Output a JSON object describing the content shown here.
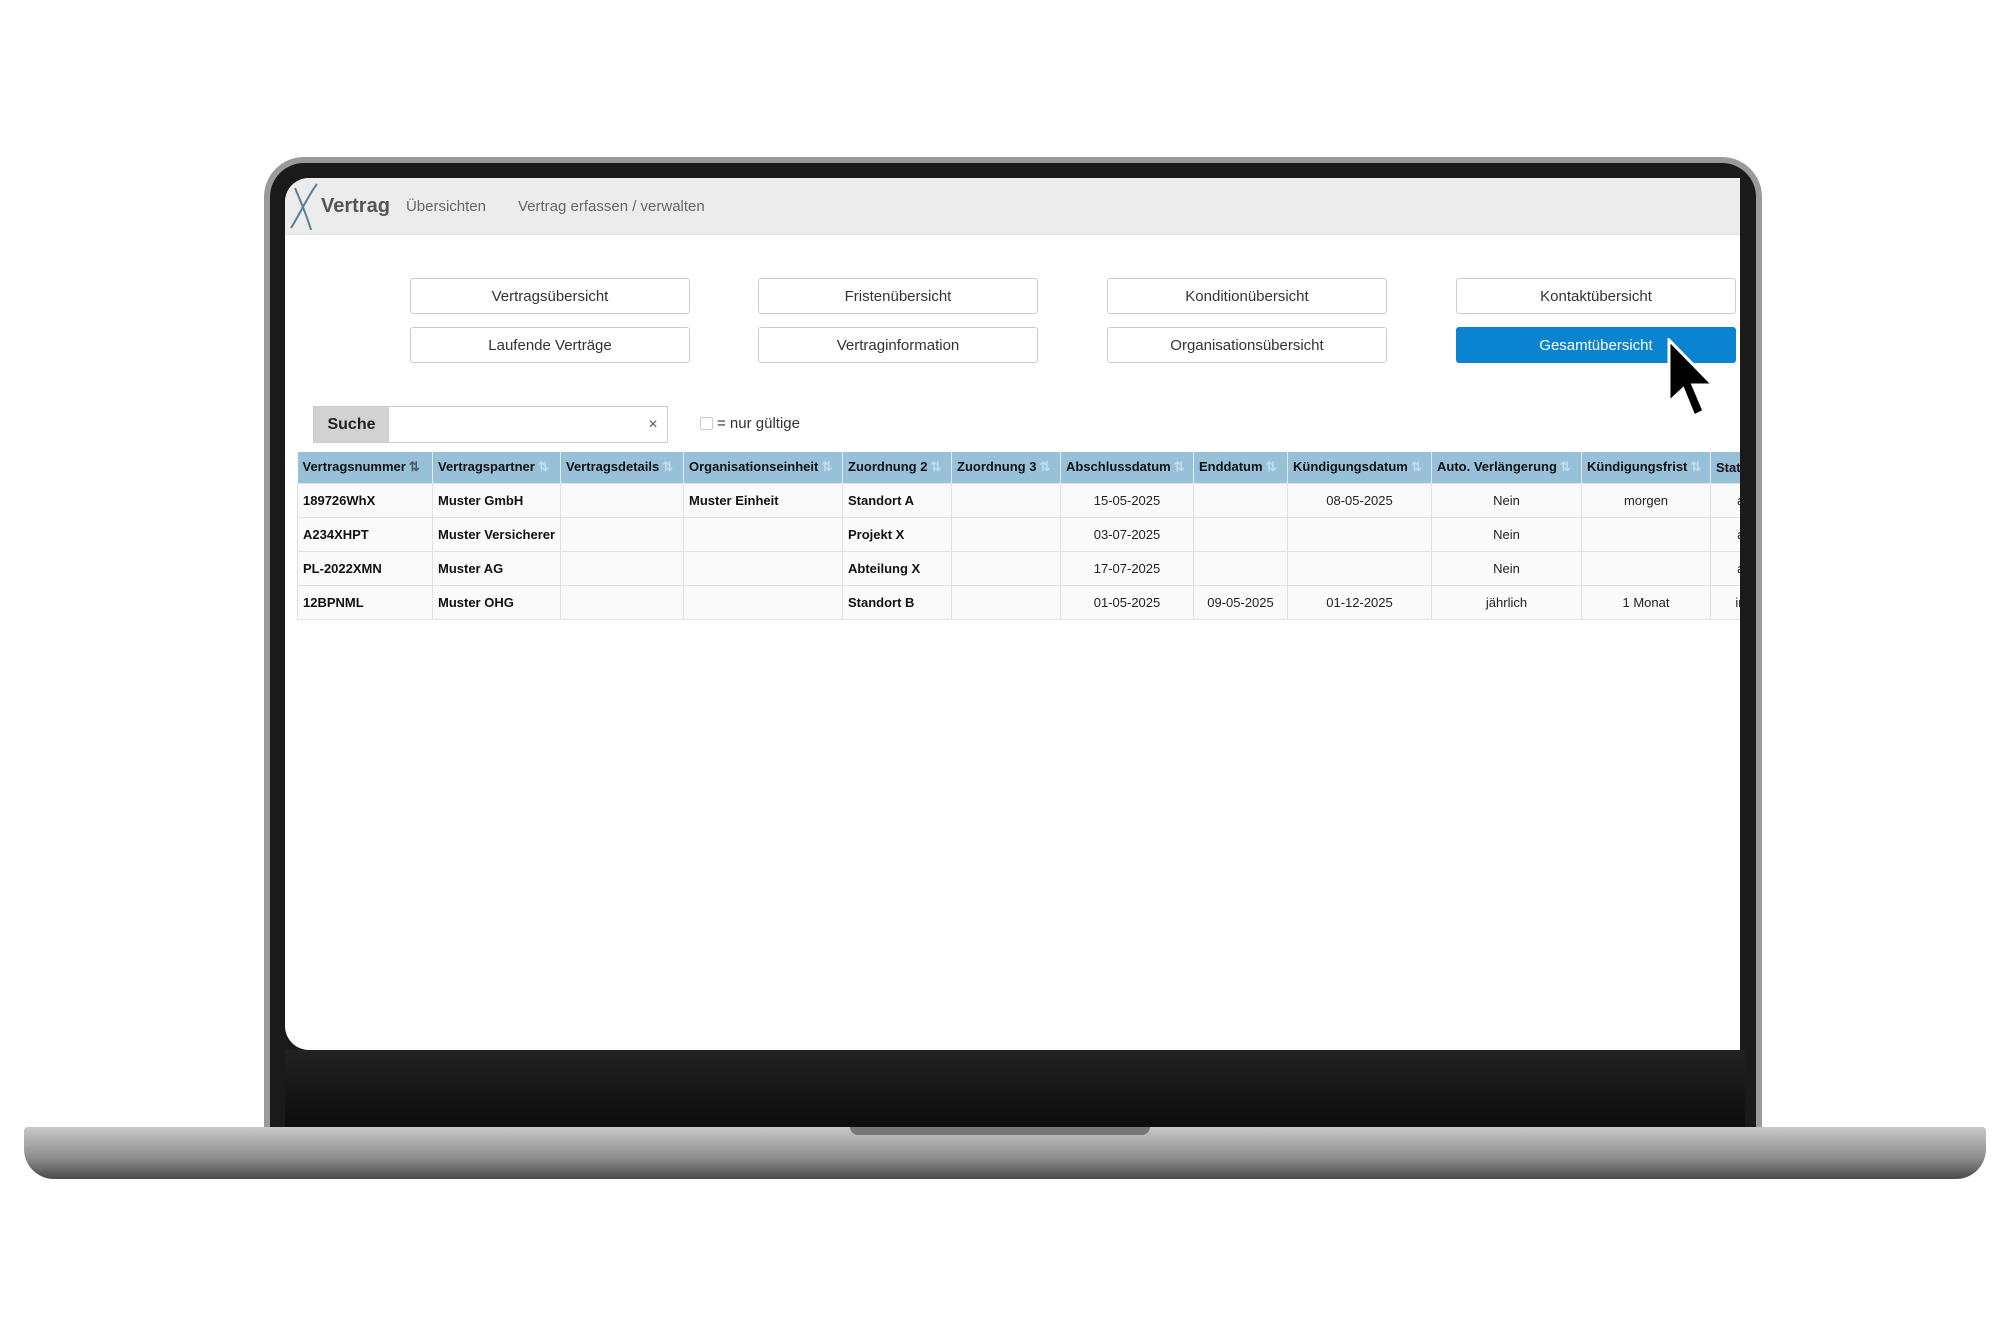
{
  "app": {
    "logo": "Vertrag",
    "nav": [
      "Übersichten",
      "Vertrag erfassen / verwalten"
    ]
  },
  "buttons": [
    {
      "label": "Vertragsübersicht",
      "active": false
    },
    {
      "label": "Fristenübersicht",
      "active": false
    },
    {
      "label": "Konditionübersicht",
      "active": false
    },
    {
      "label": "Kontaktübersicht",
      "active": false
    },
    {
      "label": "Laufende Verträge",
      "active": false
    },
    {
      "label": "Vertraginformation",
      "active": false
    },
    {
      "label": "Organisationsübersicht",
      "active": false
    },
    {
      "label": "Gesamtübersicht",
      "active": true
    }
  ],
  "search": {
    "label": "Suche",
    "value": "",
    "clear": "×"
  },
  "filter": {
    "label": "= nur gültige",
    "checked": false
  },
  "accent": "#0a84d0",
  "header_color": "#96c1d9",
  "table": {
    "columns": [
      "Vertragsnummer",
      "Vertragspartner",
      "Vertragsdetails",
      "Organisationseinheit",
      "Zuordnung 2",
      "Zuordnung 3",
      "Abschlussdatum",
      "Enddatum",
      "Kündigungsdatum",
      "Auto. Verlängerung",
      "Kündigungsfrist",
      "Stat"
    ],
    "rows": [
      [
        "189726WhX",
        "Muster GmbH",
        "",
        "Muster Einheit",
        "Standort A",
        "",
        "15-05-2025",
        "",
        "08-05-2025",
        "Nein",
        "morgen",
        "ak"
      ],
      [
        "A234XHPT",
        "Muster Versicherer",
        "",
        "",
        "Projekt X",
        "",
        "03-07-2025",
        "",
        "",
        "Nein",
        "",
        "ak"
      ],
      [
        "PL-2022XMN",
        "Muster AG",
        "",
        "",
        "Abteilung X",
        "",
        "17-07-2025",
        "",
        "",
        "Nein",
        "",
        "ak"
      ],
      [
        "12BPNML",
        "Muster OHG",
        "",
        "",
        "Standort B",
        "",
        "01-05-2025",
        "09-05-2025",
        "01-12-2025",
        "jährlich",
        "1 Monat",
        "ina"
      ]
    ]
  }
}
